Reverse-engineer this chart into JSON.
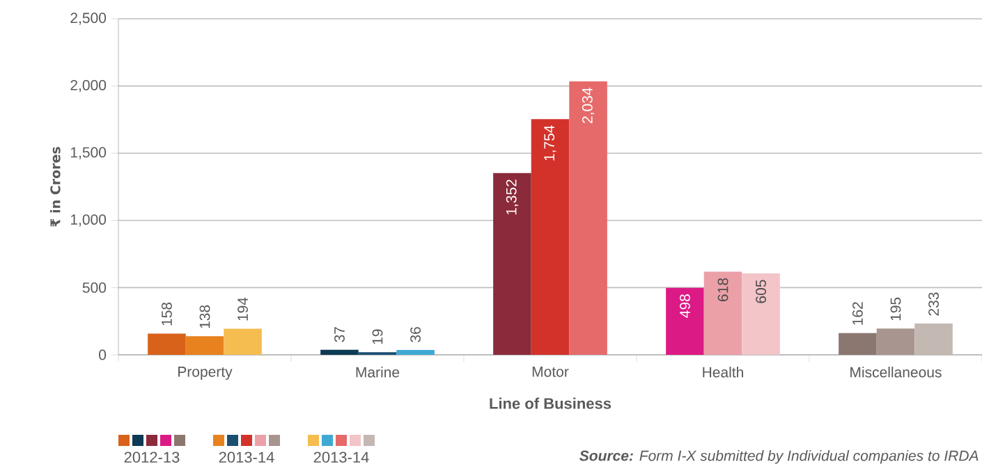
{
  "chart_data": {
    "type": "bar",
    "xlabel": "Line of Business",
    "ylabel": "₹ in Crores",
    "categories": [
      "Property",
      "Marine",
      "Motor",
      "Health",
      "Miscellaneous"
    ],
    "series": [
      {
        "name": "2012-13",
        "colors": [
          "#d9621a",
          "#0e3a55",
          "#8b2a3a",
          "#dc1a85",
          "#8c7670"
        ],
        "values": [
          158,
          37,
          1352,
          498,
          162
        ],
        "value_labels": [
          "158",
          "37",
          "1,352",
          "498",
          "162"
        ]
      },
      {
        "name": "2013-14",
        "colors": [
          "#e8821e",
          "#1b4f72",
          "#d3322b",
          "#eba0a8",
          "#a9958f"
        ],
        "values": [
          138,
          19,
          1754,
          618,
          195
        ],
        "value_labels": [
          "138",
          "19",
          "1,754",
          "618",
          "195"
        ]
      },
      {
        "name": "2013-14",
        "colors": [
          "#f5bc50",
          "#3fa9d4",
          "#e66a6a",
          "#f3c4c8",
          "#c4b8b3"
        ],
        "values": [
          194,
          36,
          2034,
          605,
          233
        ],
        "value_labels": [
          "194",
          "36",
          "2,034",
          "605",
          "233"
        ]
      }
    ],
    "ylim": [
      0,
      2500
    ],
    "yticks": [
      0,
      500,
      {
        "value": 1000,
        "label": "1,000"
      },
      {
        "value": 1500,
        "label": "1,500"
      },
      {
        "value": 2000,
        "label": "2,000"
      },
      {
        "value": 2500,
        "label": "2,500"
      }
    ],
    "grid": "y",
    "legend": "bottom left",
    "annotations": [
      "**Source:**  Form I-X submitted by Individual companies to IRDA"
    ]
  }
}
